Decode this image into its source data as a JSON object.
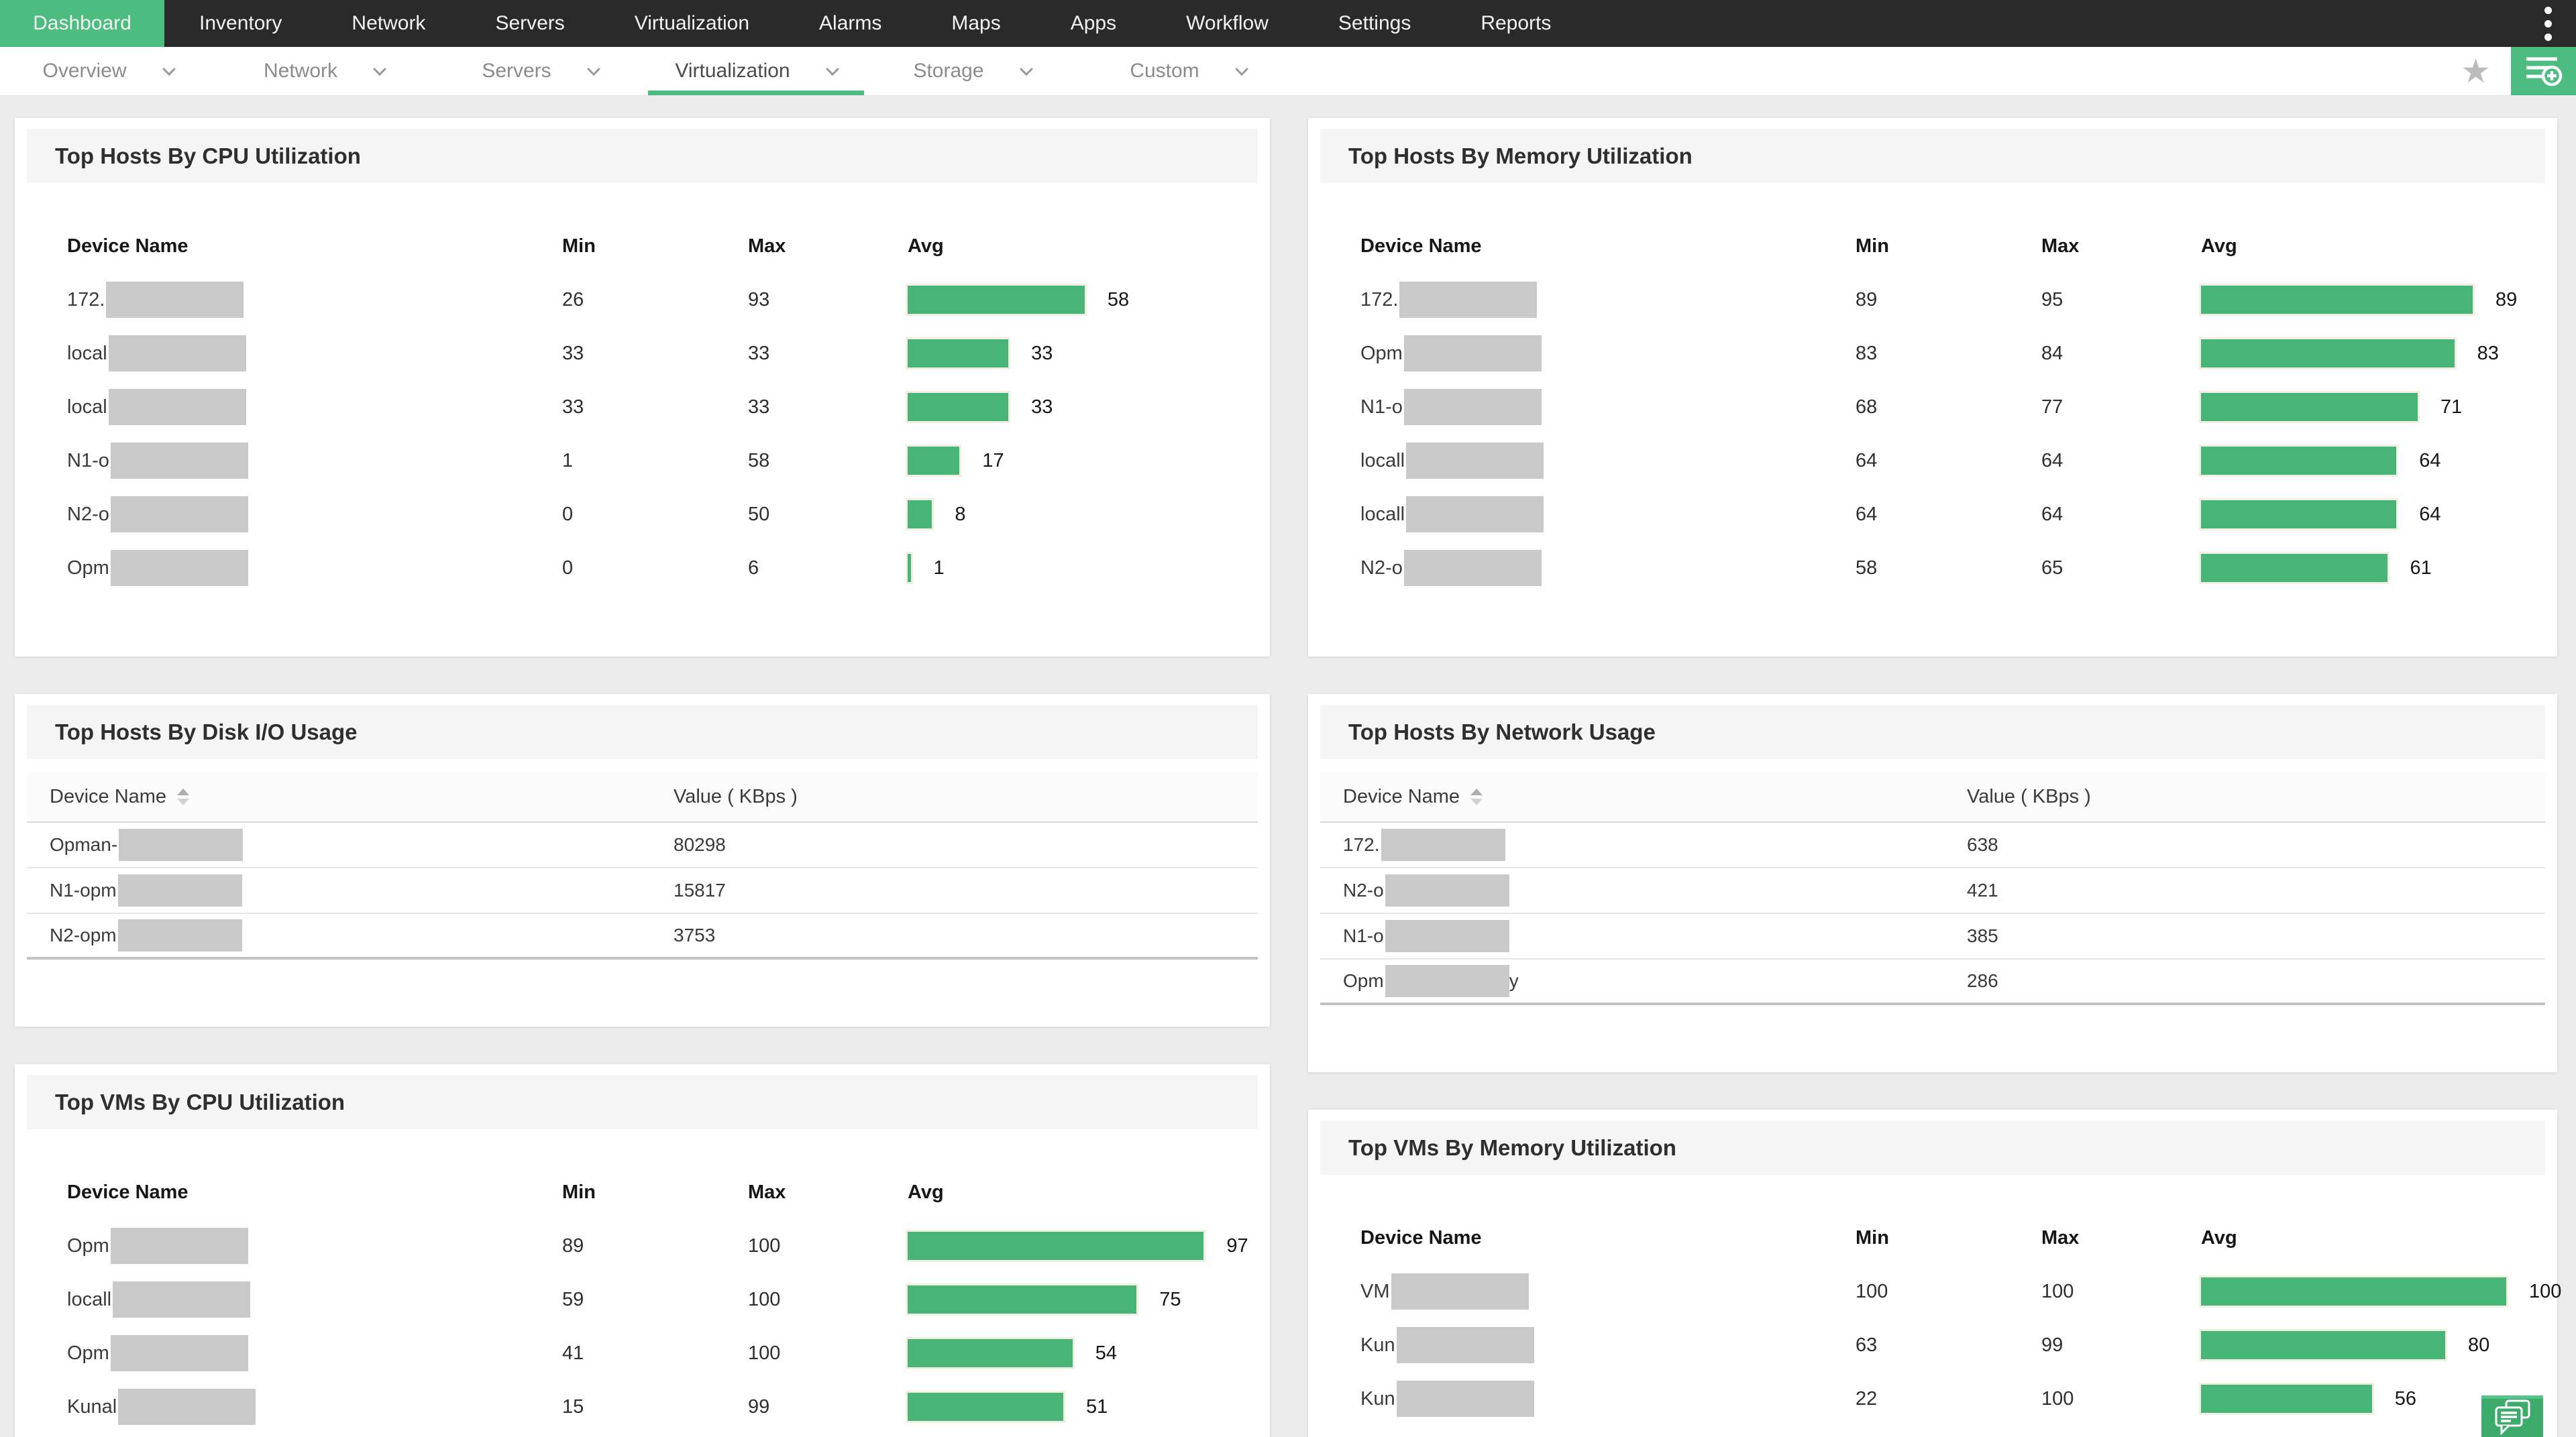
{
  "colors": {
    "accent_green": "#4cbc80",
    "bar_green": "#47b478",
    "nav_bg": "#2a2a2a"
  },
  "topnav": {
    "items": [
      "Dashboard",
      "Inventory",
      "Network",
      "Servers",
      "Virtualization",
      "Alarms",
      "Maps",
      "Apps",
      "Workflow",
      "Settings",
      "Reports"
    ],
    "active": "Dashboard",
    "more_menu_icon": "kebab-vertical"
  },
  "subnav": {
    "tabs": [
      "Overview",
      "Network",
      "Servers",
      "Virtualization",
      "Storage",
      "Custom"
    ],
    "active": "Virtualization",
    "favorite_icon": "★",
    "add_button_icon": "list-plus"
  },
  "panels": [
    {
      "id": "cpu_hosts",
      "column": "left",
      "type": "bar-table",
      "title": "Top Hosts By CPU Utilization",
      "columns": [
        "Device Name",
        "Min",
        "Max",
        "Avg"
      ],
      "rows": [
        {
          "device_prefix": "172.",
          "redacted": true,
          "min": "26",
          "max": "93",
          "avg": 58
        },
        {
          "device_prefix": "local",
          "redacted": true,
          "min": "33",
          "max": "33",
          "avg": 33
        },
        {
          "device_prefix": "local",
          "redacted": true,
          "min": "33",
          "max": "33",
          "avg": 33
        },
        {
          "device_prefix": "N1-o",
          "redacted": true,
          "min": "1",
          "max": "58",
          "avg": 17
        },
        {
          "device_prefix": "N2-o",
          "redacted": true,
          "min": "0",
          "max": "50",
          "avg": 8
        },
        {
          "device_prefix": "Opm",
          "redacted": true,
          "min": "0",
          "max": "6",
          "avg": 1
        }
      ]
    },
    {
      "id": "mem_hosts",
      "column": "right",
      "type": "bar-table",
      "title": "Top Hosts By Memory Utilization",
      "columns": [
        "Device Name",
        "Min",
        "Max",
        "Avg"
      ],
      "rows": [
        {
          "device_prefix": "172.",
          "redacted": true,
          "min": "89",
          "max": "95",
          "avg": 89
        },
        {
          "device_prefix": "Opm",
          "redacted": true,
          "min": "83",
          "max": "84",
          "avg": 83
        },
        {
          "device_prefix": "N1-o",
          "redacted": true,
          "min": "68",
          "max": "77",
          "avg": 71
        },
        {
          "device_prefix": "locall",
          "redacted": true,
          "min": "64",
          "max": "64",
          "avg": 64
        },
        {
          "device_prefix": "locall",
          "redacted": true,
          "min": "64",
          "max": "64",
          "avg": 64
        },
        {
          "device_prefix": "N2-o",
          "redacted": true,
          "min": "58",
          "max": "65",
          "avg": 61
        }
      ]
    },
    {
      "id": "disk_hosts",
      "column": "left",
      "type": "list-table",
      "title": "Top Hosts By Disk I/O Usage",
      "columns": [
        "Device Name",
        "Value ( KBps )"
      ],
      "sortable_column": "Device Name",
      "rows": [
        {
          "device_prefix": "Opman-",
          "redacted": true,
          "value": "80298"
        },
        {
          "device_prefix": "N1-opm",
          "redacted": true,
          "value": "15817"
        },
        {
          "device_prefix": "N2-opm",
          "redacted": true,
          "value": "3753"
        }
      ]
    },
    {
      "id": "network_hosts",
      "column": "right",
      "type": "list-table",
      "title": "Top Hosts By Network Usage",
      "columns": [
        "Device Name",
        "Value ( KBps )"
      ],
      "sortable_column": "Device Name",
      "rows": [
        {
          "device_prefix": "172.",
          "redacted": true,
          "value": "638"
        },
        {
          "device_prefix": "N2-o",
          "redacted": true,
          "value": "421"
        },
        {
          "device_prefix": "N1-o",
          "redacted": true,
          "value": "385"
        },
        {
          "device_prefix": "Opm",
          "redacted": true,
          "device_suffix": "y",
          "value": "286"
        }
      ]
    },
    {
      "id": "vm_cpu",
      "column": "left",
      "type": "bar-table",
      "title": "Top VMs By CPU Utilization",
      "columns": [
        "Device Name",
        "Min",
        "Max",
        "Avg"
      ],
      "rows": [
        {
          "device_prefix": "Opm",
          "redacted": true,
          "min": "89",
          "max": "100",
          "avg": 97
        },
        {
          "device_prefix": "locall",
          "redacted": true,
          "min": "59",
          "max": "100",
          "avg": 75
        },
        {
          "device_prefix": "Opm",
          "redacted": true,
          "min": "41",
          "max": "100",
          "avg": 54
        },
        {
          "device_prefix": "Kunal",
          "redacted": true,
          "min": "15",
          "max": "99",
          "avg": 51
        }
      ]
    },
    {
      "id": "vm_mem",
      "column": "right",
      "type": "bar-table",
      "title": "Top VMs By Memory Utilization",
      "columns": [
        "Device Name",
        "Min",
        "Max",
        "Avg"
      ],
      "rows": [
        {
          "device_prefix": "VM",
          "redacted": true,
          "min": "100",
          "max": "100",
          "avg": 100
        },
        {
          "device_prefix": "Kun",
          "redacted": true,
          "min": "63",
          "max": "99",
          "avg": 80
        },
        {
          "device_prefix": "Kun",
          "redacted": true,
          "min": "22",
          "max": "100",
          "avg": 56
        }
      ]
    }
  ],
  "chat_button_icon": "chat-bubbles"
}
